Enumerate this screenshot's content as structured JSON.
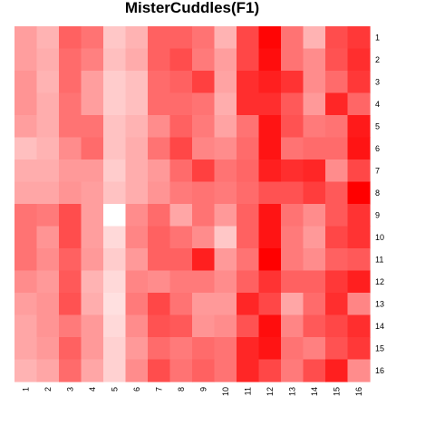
{
  "chart_data": {
    "type": "heatmap",
    "title": "MisterCuddles(F1)",
    "x_labels": [
      "1",
      "2",
      "3",
      "4",
      "5",
      "6",
      "7",
      "8",
      "9",
      "10",
      "11",
      "12",
      "13",
      "14",
      "15",
      "16"
    ],
    "y_labels": [
      "1",
      "2",
      "3",
      "4",
      "5",
      "6",
      "7",
      "8",
      "9",
      "10",
      "11",
      "12",
      "13",
      "14",
      "15",
      "16"
    ],
    "color_low": "#ffffff",
    "color_high": "#ff0000",
    "value_range": [
      0,
      1
    ],
    "values": [
      [
        0.38,
        0.3,
        0.62,
        0.55,
        0.22,
        0.3,
        0.62,
        0.62,
        0.55,
        0.3,
        0.72,
        0.98,
        0.55,
        0.3,
        0.7,
        0.78
      ],
      [
        0.38,
        0.32,
        0.58,
        0.5,
        0.25,
        0.33,
        0.62,
        0.7,
        0.52,
        0.38,
        0.72,
        0.95,
        0.55,
        0.45,
        0.68,
        0.82
      ],
      [
        0.42,
        0.3,
        0.58,
        0.38,
        0.2,
        0.25,
        0.58,
        0.62,
        0.75,
        0.36,
        0.82,
        0.88,
        0.8,
        0.45,
        0.58,
        0.78
      ],
      [
        0.42,
        0.32,
        0.55,
        0.38,
        0.2,
        0.25,
        0.58,
        0.58,
        0.55,
        0.32,
        0.82,
        0.82,
        0.65,
        0.4,
        0.85,
        0.6
      ],
      [
        0.38,
        0.32,
        0.55,
        0.55,
        0.24,
        0.3,
        0.45,
        0.62,
        0.52,
        0.36,
        0.55,
        0.92,
        0.68,
        0.52,
        0.55,
        0.9
      ],
      [
        0.25,
        0.3,
        0.45,
        0.58,
        0.24,
        0.32,
        0.55,
        0.72,
        0.48,
        0.45,
        0.58,
        0.92,
        0.55,
        0.58,
        0.58,
        0.92
      ],
      [
        0.32,
        0.32,
        0.4,
        0.4,
        0.2,
        0.32,
        0.4,
        0.58,
        0.75,
        0.55,
        0.6,
        0.88,
        0.82,
        0.85,
        0.45,
        0.72
      ],
      [
        0.35,
        0.35,
        0.42,
        0.38,
        0.24,
        0.32,
        0.42,
        0.52,
        0.55,
        0.52,
        0.58,
        0.68,
        0.68,
        0.76,
        0.65,
        1.0
      ],
      [
        0.55,
        0.52,
        0.7,
        0.38,
        0.0,
        0.45,
        0.58,
        0.35,
        0.55,
        0.4,
        0.62,
        0.92,
        0.55,
        0.45,
        0.65,
        0.8
      ],
      [
        0.55,
        0.42,
        0.7,
        0.38,
        0.15,
        0.48,
        0.62,
        0.55,
        0.45,
        0.22,
        0.62,
        0.92,
        0.52,
        0.4,
        0.72,
        0.8
      ],
      [
        0.55,
        0.45,
        0.62,
        0.4,
        0.2,
        0.4,
        0.62,
        0.62,
        0.88,
        0.4,
        0.55,
        1.0,
        0.52,
        0.45,
        0.62,
        0.65
      ],
      [
        0.45,
        0.4,
        0.65,
        0.3,
        0.15,
        0.48,
        0.45,
        0.52,
        0.52,
        0.45,
        0.62,
        0.8,
        0.62,
        0.62,
        0.78,
        0.88
      ],
      [
        0.38,
        0.42,
        0.68,
        0.32,
        0.12,
        0.52,
        0.72,
        0.55,
        0.4,
        0.4,
        0.85,
        0.72,
        0.35,
        0.58,
        0.82,
        0.48
      ],
      [
        0.35,
        0.42,
        0.52,
        0.4,
        0.15,
        0.45,
        0.68,
        0.65,
        0.42,
        0.45,
        0.68,
        0.95,
        0.48,
        0.65,
        0.72,
        0.82
      ],
      [
        0.35,
        0.4,
        0.62,
        0.4,
        0.18,
        0.4,
        0.58,
        0.52,
        0.58,
        0.55,
        0.85,
        0.92,
        0.55,
        0.5,
        0.68,
        0.78
      ],
      [
        0.3,
        0.35,
        0.58,
        0.35,
        0.18,
        0.45,
        0.7,
        0.55,
        0.62,
        0.55,
        0.85,
        0.72,
        0.52,
        0.7,
        0.88,
        0.45
      ]
    ]
  }
}
